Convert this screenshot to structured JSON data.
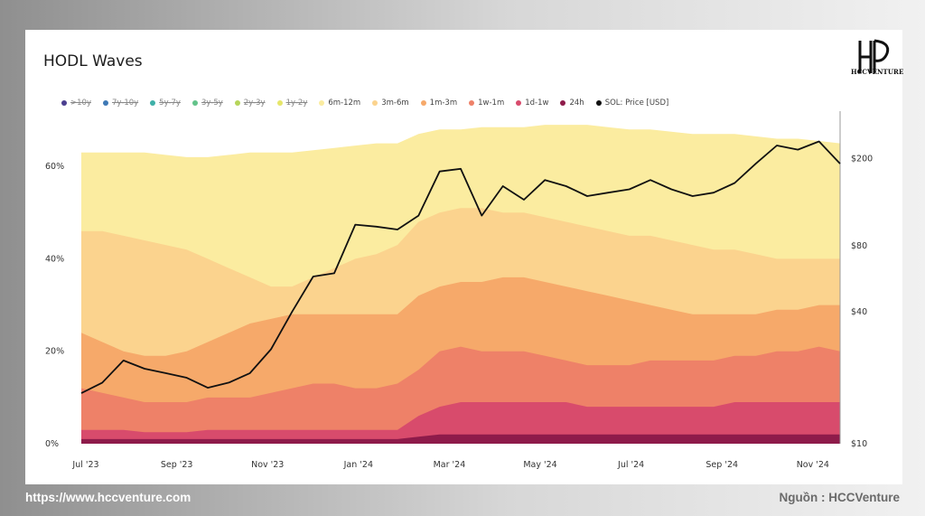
{
  "footer": {
    "url": "https://www.hccventure.com",
    "source": "Nguồn : HCCVenture"
  },
  "logo": {
    "text": "HCCVENTURE"
  },
  "chart_data": {
    "type": "area",
    "title": "HODL Waves",
    "x_ticks": [
      "Jul '23",
      "Sep '23",
      "Nov '23",
      "Jan '24",
      "Mar '24",
      "May '24",
      "Jul '24",
      "Sep '24",
      "Nov '24"
    ],
    "y_left": {
      "ticks": [
        "0%",
        "20%",
        "40%",
        "60%"
      ],
      "values": [
        0,
        20,
        40,
        60
      ],
      "range": [
        0,
        70
      ]
    },
    "y_right": {
      "ticks": [
        "$10",
        "$40",
        "$80",
        "$200"
      ],
      "values": [
        10,
        40,
        80,
        200
      ],
      "log": true
    },
    "legend": [
      {
        "label": ">10y",
        "color": "#4b3f8f",
        "visible": false
      },
      {
        "label": "7y-10y",
        "color": "#3f79b5",
        "visible": false
      },
      {
        "label": "5y-7y",
        "color": "#3fb0a8",
        "visible": false
      },
      {
        "label": "3y-5y",
        "color": "#63c38a",
        "visible": false
      },
      {
        "label": "2y-3y",
        "color": "#b6d55a",
        "visible": false
      },
      {
        "label": "1y-2y",
        "color": "#e6e66a",
        "visible": false
      },
      {
        "label": "6m-12m",
        "color": "#fbeca0",
        "visible": true
      },
      {
        "label": "3m-6m",
        "color": "#fbd38e",
        "visible": true
      },
      {
        "label": "1m-3m",
        "color": "#f6a96a",
        "visible": true
      },
      {
        "label": "1w-1m",
        "color": "#ee8168",
        "visible": true
      },
      {
        "label": "1d-1w",
        "color": "#d84b6c",
        "visible": true
      },
      {
        "label": "24h",
        "color": "#8e1b4a",
        "visible": true
      },
      {
        "label": "SOL: Price [USD]",
        "color": "#111111",
        "visible": true
      }
    ],
    "x": [
      0,
      0.5,
      1,
      1.5,
      2,
      2.5,
      3,
      3.5,
      4,
      4.5,
      5,
      5.5,
      6,
      6.5,
      7,
      7.5,
      8,
      8.5,
      9,
      9.5,
      10,
      10.5,
      11,
      11.5,
      12,
      12.5,
      13,
      13.5,
      14,
      14.5,
      15,
      15.5,
      16,
      16.5,
      17,
      17.5,
      18
    ],
    "series": [
      {
        "name": "24h",
        "color": "#8e1b4a",
        "values": [
          1,
          1,
          1,
          1,
          1,
          1,
          1,
          1,
          1,
          1,
          1,
          1,
          1,
          1,
          1,
          1,
          1.5,
          2,
          2,
          2,
          2,
          2,
          2,
          2,
          2,
          2,
          2,
          2,
          2,
          2,
          2,
          2,
          2,
          2,
          2,
          2,
          2
        ]
      },
      {
        "name": "1d-1w",
        "color": "#d84b6c",
        "values": [
          3,
          3,
          3,
          2.5,
          2.5,
          2.5,
          3,
          3,
          3,
          3,
          3,
          3,
          3,
          3,
          3,
          3,
          6,
          8,
          9,
          9,
          9,
          9,
          9,
          9,
          8,
          8,
          8,
          8,
          8,
          8,
          8,
          9,
          9,
          9,
          9,
          9,
          9
        ]
      },
      {
        "name": "1w-1m",
        "color": "#ee8168",
        "values": [
          12,
          11,
          10,
          9,
          9,
          9,
          10,
          10,
          10,
          11,
          12,
          13,
          13,
          12,
          12,
          13,
          16,
          20,
          21,
          20,
          20,
          20,
          19,
          18,
          17,
          17,
          17,
          18,
          18,
          18,
          18,
          19,
          19,
          20,
          20,
          21,
          20
        ]
      },
      {
        "name": "1m-3m",
        "color": "#f6a96a",
        "values": [
          24,
          22,
          20,
          19,
          19,
          20,
          22,
          24,
          26,
          27,
          28,
          28,
          28,
          28,
          28,
          28,
          32,
          34,
          35,
          35,
          36,
          36,
          35,
          34,
          33,
          32,
          31,
          30,
          29,
          28,
          28,
          28,
          28,
          29,
          29,
          30,
          30
        ]
      },
      {
        "name": "3m-6m",
        "color": "#fbd38e",
        "values": [
          46,
          46,
          45,
          44,
          43,
          42,
          40,
          38,
          36,
          34,
          34,
          36,
          38,
          40,
          41,
          43,
          48,
          50,
          51,
          51,
          50,
          50,
          49,
          48,
          47,
          46,
          45,
          45,
          44,
          43,
          42,
          42,
          41,
          40,
          40,
          40,
          40
        ]
      },
      {
        "name": "6m-12m",
        "color": "#fbeca0",
        "values": [
          63,
          63,
          63,
          63,
          62.5,
          62,
          62,
          62.5,
          63,
          63,
          63,
          63.5,
          64,
          64.5,
          65,
          65,
          67,
          68,
          68,
          68.5,
          68.5,
          68.5,
          69,
          69,
          69,
          68.5,
          68,
          68,
          67.5,
          67,
          67,
          67,
          66.5,
          66,
          66,
          65.5,
          65
        ]
      }
    ],
    "price_series": {
      "name": "SOL: Price [USD]",
      "color": "#111111",
      "values": [
        17,
        19,
        24,
        22,
        21,
        20,
        18,
        19,
        21,
        27,
        40,
        58,
        60,
        100,
        98,
        95,
        110,
        175,
        180,
        110,
        150,
        130,
        160,
        150,
        135,
        140,
        145,
        160,
        145,
        135,
        140,
        155,
        190,
        230,
        220,
        240,
        190
      ]
    }
  }
}
